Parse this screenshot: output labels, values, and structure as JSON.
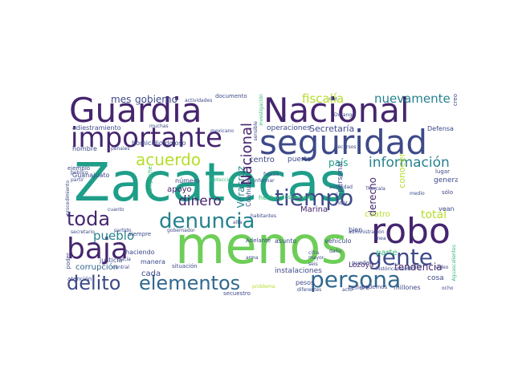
{
  "palette": {
    "dark_purple": "#46256f",
    "indigo": "#3e4a89",
    "blue": "#31688e",
    "teal": "#26828e",
    "green_teal": "#1f9e89",
    "green": "#35b779",
    "lime": "#6ece58",
    "yellow_green": "#b5de2b",
    "yellow": "#fde725"
  },
  "words": [
    {
      "text": "Zacatecas",
      "color": "#1f9e89"
    },
    {
      "text": "menos",
      "color": "#6ece58"
    },
    {
      "text": "Guardia",
      "color": "#46256f"
    },
    {
      "text": "Nacional",
      "color": "#46256f"
    },
    {
      "text": "seguridad",
      "color": "#3e4a89"
    },
    {
      "text": "robo",
      "color": "#46256f"
    },
    {
      "text": "importante",
      "color": "#46256f"
    },
    {
      "text": "denuncia",
      "color": "#26828e"
    },
    {
      "text": "baja",
      "color": "#46256f"
    },
    {
      "text": "tiempo",
      "color": "#3e4a89"
    },
    {
      "text": "persona",
      "color": "#31688e"
    },
    {
      "text": "gente",
      "color": "#3e4a89"
    },
    {
      "text": "delito",
      "color": "#3e4a89"
    },
    {
      "text": "elementos",
      "color": "#31688e"
    },
    {
      "text": "toda",
      "color": "#46256f"
    },
    {
      "text": "acuerdo",
      "color": "#b5de2b"
    },
    {
      "text": "información",
      "color": "#26828e"
    },
    {
      "text": "dinero",
      "color": "#46256f"
    },
    {
      "text": "pueblo",
      "color": "#26828e"
    },
    {
      "text": "nuevamente",
      "color": "#26828e"
    },
    {
      "text": "fiscalía",
      "color": "#b5de2b"
    },
    {
      "text": "mes",
      "color": "#3e4a89"
    },
    {
      "text": "gobierno",
      "color": "#3e4a89"
    },
    {
      "text": "tendencia",
      "color": "#46256f"
    },
    {
      "text": "total",
      "color": "#b5de2b"
    },
    {
      "text": "parte",
      "color": "#35b779"
    },
    {
      "text": "país",
      "color": "#1f9e89"
    },
    {
      "text": "Secretaría",
      "color": "#3e4a89"
    },
    {
      "text": "Veracruz",
      "color": "#26828e"
    },
    {
      "text": "Nacional",
      "color": "#46256f"
    },
    {
      "text": "derecho",
      "color": "#46256f"
    },
    {
      "text": "Marina",
      "color": "#46256f"
    },
    {
      "text": "apoyo",
      "color": "#46256f"
    },
    {
      "text": "cuatro",
      "color": "#b5de2b"
    },
    {
      "text": "corrupción",
      "color": "#31688e"
    },
    {
      "text": "cada",
      "color": "#3e4a89"
    },
    {
      "text": "centro",
      "color": "#3e4a89"
    },
    {
      "text": "puerto",
      "color": "#3e4a89"
    },
    {
      "text": "conocer",
      "color": "#b5de2b"
    },
    {
      "text": "general",
      "color": "#3e4a89"
    },
    {
      "text": "Lozoya",
      "color": "#46256f"
    },
    {
      "text": "cosa",
      "color": "#3e4a89"
    },
    {
      "text": "operaciones",
      "color": "#3e4a89"
    },
    {
      "text": "instalaciones",
      "color": "#3e4a89"
    },
    {
      "text": "adiestramiento",
      "color": "#3e4a89"
    },
    {
      "text": "homicidio doloso",
      "color": "#3e4a89"
    },
    {
      "text": "Guanajuato",
      "color": "#3e4a89"
    },
    {
      "text": "justicia",
      "color": "#3e4a89"
    },
    {
      "text": "haciendo",
      "color": "#3e4a89"
    },
    {
      "text": "número",
      "color": "#3e4a89"
    },
    {
      "text": "manera",
      "color": "#3e4a89"
    },
    {
      "text": "situación",
      "color": "#3e4a89"
    },
    {
      "text": "hombre",
      "color": "#3e4a89"
    },
    {
      "text": "vean",
      "color": "#3e4a89"
    },
    {
      "text": "hoy",
      "color": "#3e4a89"
    },
    {
      "text": "pesos",
      "color": "#3e4a89"
    },
    {
      "text": "refiere",
      "color": "#3e4a89"
    },
    {
      "text": "millones",
      "color": "#3e4a89"
    },
    {
      "text": "podemos",
      "color": "#3e4a89"
    },
    {
      "text": "muchas",
      "color": "#3e4a89"
    },
    {
      "text": "Defensa",
      "color": "#3e4a89"
    },
    {
      "text": "atención",
      "color": "#3e4a89"
    },
    {
      "text": "poder",
      "color": "#3e4a89"
    },
    {
      "text": "secuestro",
      "color": "#3e4a89"
    },
    {
      "text": "vehículo",
      "color": "#3e4a89"
    },
    {
      "text": "asunto",
      "color": "#3e4a89"
    },
    {
      "text": "Adelante",
      "color": "#3e4a89"
    },
    {
      "text": "Coahuila",
      "color": "#3e4a89"
    },
    {
      "text": "hecho",
      "color": "#35b779"
    },
    {
      "text": "desplegado",
      "color": "#35b779"
    },
    {
      "text": "Durango",
      "color": "#3e4a89"
    },
    {
      "text": "siempre",
      "color": "#3e4a89"
    },
    {
      "text": "ejemplo",
      "color": "#3e4a89"
    },
    {
      "text": "bien",
      "color": "#3e4a89"
    },
    {
      "text": "pueden",
      "color": "#3e4a89"
    },
    {
      "text": "documento",
      "color": "#3e4a89"
    },
    {
      "text": "Tlaxcala",
      "color": "#3e4a89"
    },
    {
      "text": "recursos",
      "color": "#3e4a89"
    },
    {
      "text": "personal",
      "color": "#3e4a89"
    },
    {
      "text": "lugar",
      "color": "#3e4a89"
    },
    {
      "text": "sólo",
      "color": "#3e4a89"
    },
    {
      "text": "creo",
      "color": "#3e4a89"
    },
    {
      "text": "autoridad",
      "color": "#3e4a89"
    },
    {
      "text": "informar",
      "color": "#3e4a89"
    },
    {
      "text": "fuerza",
      "color": "#3e4a89"
    },
    {
      "text": "habitantes",
      "color": "#3e4a89"
    },
    {
      "text": "gobernador",
      "color": "#3e4a89"
    },
    {
      "text": "penales",
      "color": "#3e4a89"
    },
    {
      "text": "partir",
      "color": "#3e4a89"
    },
    {
      "text": "partido",
      "color": "#3e4a89"
    },
    {
      "text": "secretario",
      "color": "#3e4a89"
    },
    {
      "text": "Hacia",
      "color": "#3e4a89"
    },
    {
      "text": "central",
      "color": "#3e4a89"
    },
    {
      "text": "cifra",
      "color": "#3e4a89"
    },
    {
      "text": "mayor",
      "color": "#3e4a89"
    },
    {
      "text": "daño",
      "color": "#3e4a89"
    },
    {
      "text": "seis",
      "color": "#3e4a89"
    },
    {
      "text": "arma",
      "color": "#3e4a89"
    },
    {
      "text": "diferentes",
      "color": "#3e4a89"
    },
    {
      "text": "acto",
      "color": "#3e4a89"
    },
    {
      "text": "ocho",
      "color": "#3e4a89"
    },
    {
      "text": "línea",
      "color": "#3e4a89"
    },
    {
      "text": "cuenta",
      "color": "#3e4a89"
    },
    {
      "text": "actividades",
      "color": "#3e4a89"
    },
    {
      "text": "investigación",
      "color": "#35b779"
    },
    {
      "text": "sensible",
      "color": "#3e4a89"
    },
    {
      "text": "protección",
      "color": "#35b779"
    },
    {
      "text": "cuanto",
      "color": "#3e4a89"
    },
    {
      "text": "mexicano",
      "color": "#3e4a89"
    },
    {
      "text": "dar",
      "color": "#3e4a89"
    },
    {
      "text": "video",
      "color": "#3e4a89"
    },
    {
      "text": "público",
      "color": "#3e4a89"
    },
    {
      "text": "procedimiento",
      "color": "#3e4a89"
    },
    {
      "text": "alta",
      "color": "#3e4a89"
    },
    {
      "text": "Flor",
      "color": "#3e4a89"
    },
    {
      "text": "medio",
      "color": "#3e4a89"
    },
    {
      "text": "históricamente",
      "color": "#3e4a89"
    },
    {
      "text": "administración",
      "color": "#3e4a89"
    },
    {
      "text": "Aguascalientes",
      "color": "#35b779"
    },
    {
      "text": "Campeche",
      "color": "#35b779"
    },
    {
      "text": "problema",
      "color": "#b5de2b"
    }
  ]
}
